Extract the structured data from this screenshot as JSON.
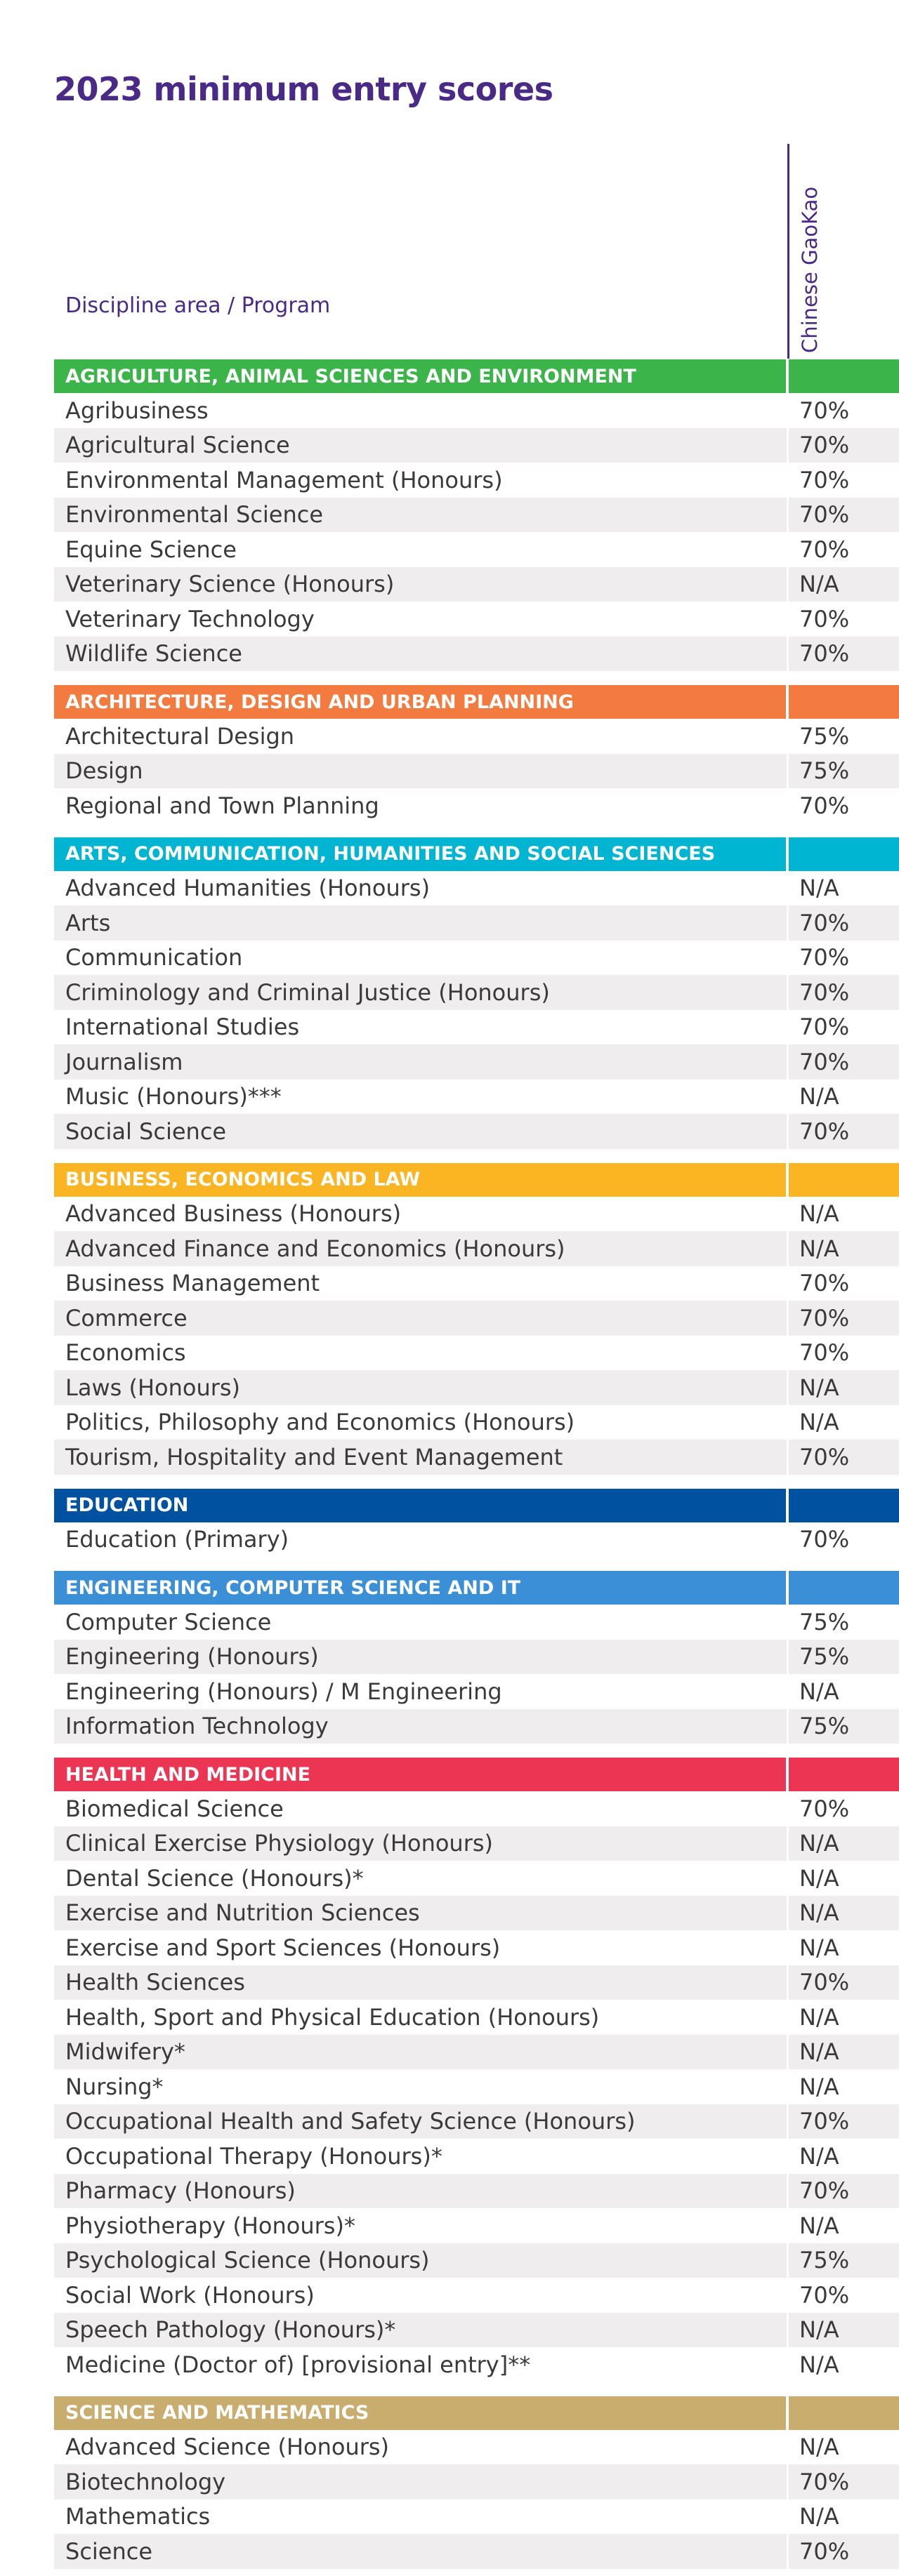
{
  "title": "2023 minimum entry scores",
  "header": {
    "program_label": "Discipline area / Program",
    "score_label": "Chinese GaoKao"
  },
  "sections": [
    {
      "name": "AGRICULTURE, ANIMAL SCIENCES AND ENVIRONMENT",
      "color": "#3bb54a",
      "rows": [
        {
          "program": "Agribusiness",
          "score": "70%"
        },
        {
          "program": "Agricultural Science",
          "score": "70%"
        },
        {
          "program": "Environmental Management (Honours)",
          "score": "70%"
        },
        {
          "program": "Environmental Science",
          "score": "70%"
        },
        {
          "program": "Equine Science",
          "score": "70%"
        },
        {
          "program": "Veterinary Science (Honours)",
          "score": "N/A"
        },
        {
          "program": "Veterinary Technology",
          "score": "70%"
        },
        {
          "program": "Wildlife Science",
          "score": "70%"
        }
      ]
    },
    {
      "name": "ARCHITECTURE, DESIGN AND URBAN PLANNING",
      "color": "#f47b40",
      "rows": [
        {
          "program": "Architectural Design",
          "score": "75%"
        },
        {
          "program": "Design",
          "score": "75%"
        },
        {
          "program": "Regional and Town Planning",
          "score": "70%"
        }
      ]
    },
    {
      "name": "ARTS, COMMUNICATION, HUMANITIES AND SOCIAL SCIENCES",
      "color": "#00b5d1",
      "rows": [
        {
          "program": "Advanced Humanities (Honours)",
          "score": "N/A"
        },
        {
          "program": "Arts",
          "score": "70%"
        },
        {
          "program": "Communication",
          "score": "70%"
        },
        {
          "program": "Criminology and Criminal Justice (Honours)",
          "score": "70%"
        },
        {
          "program": "International Studies",
          "score": "70%"
        },
        {
          "program": "Journalism",
          "score": "70%"
        },
        {
          "program": "Music (Honours)***",
          "score": "N/A"
        },
        {
          "program": "Social Science",
          "score": "70%"
        }
      ]
    },
    {
      "name": "BUSINESS, ECONOMICS AND LAW",
      "color": "#fbb523",
      "rows": [
        {
          "program": "Advanced Business (Honours)",
          "score": "N/A"
        },
        {
          "program": "Advanced Finance and Economics (Honours)",
          "score": "N/A"
        },
        {
          "program": "Business Management",
          "score": "70%"
        },
        {
          "program": "Commerce",
          "score": "70%"
        },
        {
          "program": "Economics",
          "score": "70%"
        },
        {
          "program": "Laws (Honours)",
          "score": "N/A"
        },
        {
          "program": "Politics, Philosophy and Economics (Honours)",
          "score": "N/A"
        },
        {
          "program": "Tourism, Hospitality and Event Management",
          "score": "70%"
        }
      ]
    },
    {
      "name": "EDUCATION",
      "color": "#0051a0",
      "rows": [
        {
          "program": "Education (Primary)",
          "score": "70%"
        }
      ]
    },
    {
      "name": "ENGINEERING, COMPUTER SCIENCE AND IT",
      "color": "#3a8fd6",
      "rows": [
        {
          "program": "Computer Science",
          "score": "75%"
        },
        {
          "program": "Engineering (Honours)",
          "score": "75%"
        },
        {
          "program": "Engineering (Honours) / M Engineering",
          "score": "N/A"
        },
        {
          "program": "Information Technology",
          "score": "75%"
        }
      ]
    },
    {
      "name": "HEALTH AND MEDICINE",
      "color": "#ec3453",
      "rows": [
        {
          "program": "Biomedical Science",
          "score": "70%"
        },
        {
          "program": "Clinical Exercise Physiology (Honours)",
          "score": "N/A"
        },
        {
          "program": "Dental Science (Honours)*",
          "score": "N/A"
        },
        {
          "program": "Exercise and Nutrition Sciences",
          "score": "N/A"
        },
        {
          "program": "Exercise and Sport Sciences (Honours)",
          "score": "N/A"
        },
        {
          "program": "Health Sciences",
          "score": "70%"
        },
        {
          "program": "Health, Sport and Physical Education (Honours)",
          "score": "N/A"
        },
        {
          "program": "Midwifery*",
          "score": "N/A"
        },
        {
          "program": "Nursing*",
          "score": "N/A"
        },
        {
          "program": "Occupational Health and Safety Science (Honours)",
          "score": "70%"
        },
        {
          "program": "Occupational Therapy (Honours)*",
          "score": "N/A"
        },
        {
          "program": "Pharmacy (Honours)",
          "score": "70%"
        },
        {
          "program": "Physiotherapy (Honours)*",
          "score": "N/A"
        },
        {
          "program": "Psychological Science (Honours)",
          "score": "75%"
        },
        {
          "program": "Social Work (Honours)",
          "score": "70%"
        },
        {
          "program": "Speech Pathology (Honours)*",
          "score": "N/A"
        },
        {
          "program": "Medicine (Doctor of) [provisional entry]**",
          "score": "N/A"
        }
      ]
    },
    {
      "name": "SCIENCE AND MATHEMATICS",
      "color": "#c8ad6e",
      "rows": [
        {
          "program": "Advanced Science (Honours)",
          "score": "N/A"
        },
        {
          "program": "Biotechnology",
          "score": "70%"
        },
        {
          "program": "Mathematics",
          "score": "N/A"
        },
        {
          "program": "Science",
          "score": "70%"
        }
      ]
    }
  ]
}
